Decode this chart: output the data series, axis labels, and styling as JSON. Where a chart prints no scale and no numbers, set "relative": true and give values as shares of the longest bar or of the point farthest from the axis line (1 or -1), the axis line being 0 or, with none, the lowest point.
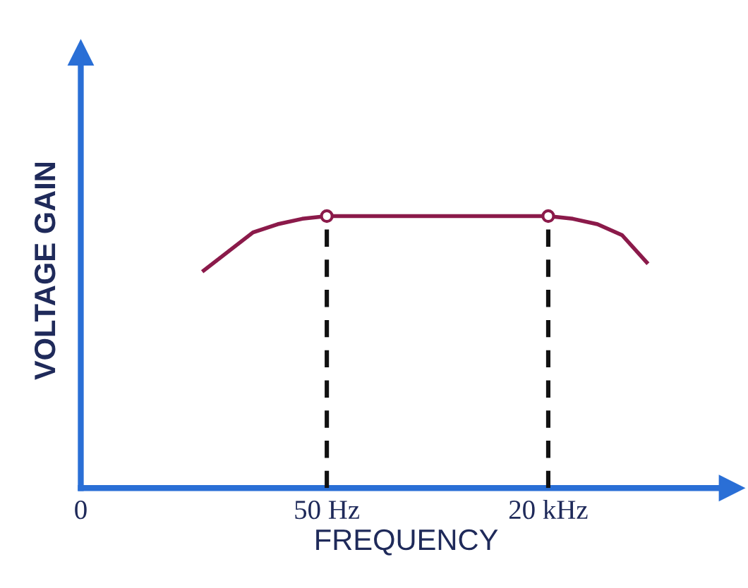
{
  "chart_data": {
    "type": "line",
    "relative": true,
    "xlabel": "FREQUENCY",
    "ylabel": "VOLTAGE GAIN",
    "categories": [
      "0",
      null,
      null,
      null,
      null,
      null,
      null,
      null,
      null,
      null,
      "50 Hz",
      null,
      null,
      null,
      null,
      null,
      null,
      null,
      null,
      "20 kHz",
      null,
      null,
      null,
      null
    ],
    "series": [
      {
        "color": "#8b1a4a",
        "values": [
          null,
          null,
          null,
          null,
          null,
          0.8,
          0.87,
          0.94,
          0.97,
          0.99,
          1,
          1,
          1,
          1,
          1,
          1,
          1,
          1,
          1,
          1,
          0.99,
          0.97,
          0.93,
          0.83
        ]
      },
      {
        "type": "scatter",
        "marker": "circle",
        "color": "#8b1a4a",
        "x": [
          "50 Hz",
          "20 kHz"
        ],
        "values": [
          1,
          1
        ]
      }
    ],
    "ref_lines": [
      {
        "axis": "x",
        "value": "50 Hz",
        "color": "#111111",
        "line_style": "dashed"
      },
      {
        "axis": "x",
        "value": "20 kHz",
        "color": "#111111",
        "line_style": "dashed"
      }
    ],
    "grid": false,
    "legend": false
  }
}
